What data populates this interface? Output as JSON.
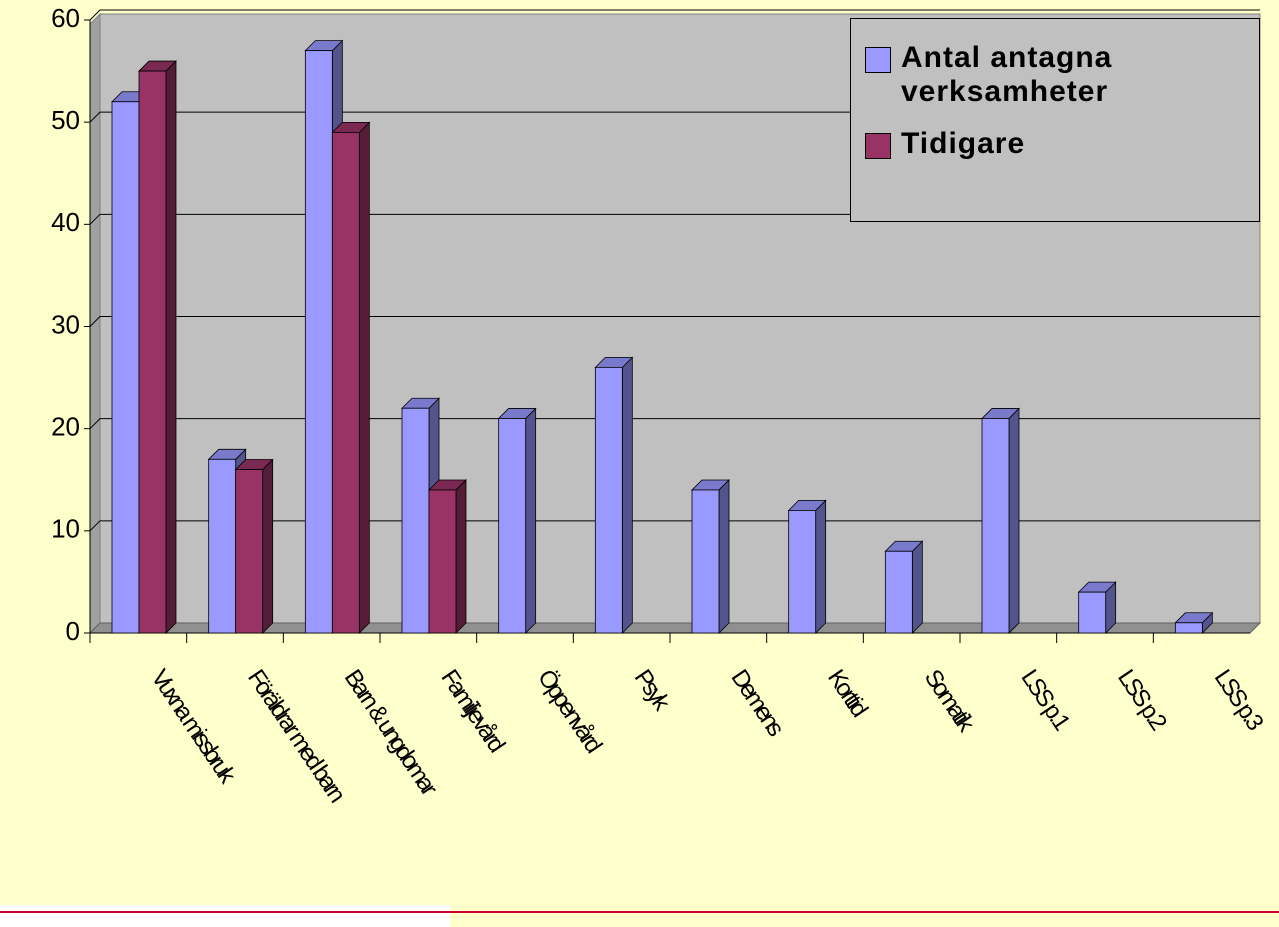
{
  "chart_data": {
    "type": "bar",
    "categories": [
      "Vuxna missbruk",
      "Föräldrar med barn",
      "Barn & ungdomar",
      "Familjevård",
      "Öppenvård",
      "Psyk",
      "Demens",
      "Korttid",
      "Somatik",
      "LSS p.1",
      "LSS p.2",
      "LSS p.3"
    ],
    "series": [
      {
        "name": "Antal antagna verksamheter",
        "color": "#9999ff",
        "values": [
          52,
          17,
          57,
          22,
          21,
          26,
          14,
          12,
          8,
          21,
          4,
          1
        ]
      },
      {
        "name": "Tidigare",
        "color": "#993366",
        "values": [
          55,
          16,
          49,
          14,
          null,
          null,
          null,
          null,
          null,
          null,
          null,
          null
        ]
      }
    ],
    "ylim": [
      0,
      60
    ],
    "yticks": [
      0,
      10,
      20,
      30,
      40,
      50,
      60
    ],
    "grid": true,
    "legend": "top-right"
  }
}
